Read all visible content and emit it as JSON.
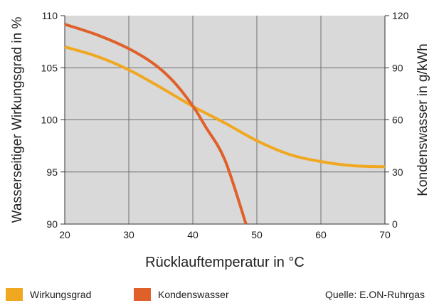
{
  "chart_data": {
    "type": "line",
    "xlabel": "Rücklauftemperatur in °C",
    "ylabel_left": "Wasserseitiger Wirkungsgrad in %",
    "ylabel_right": "Kondenswasser in g/kWh",
    "xlim": [
      20,
      70
    ],
    "ylim_left": [
      90,
      110
    ],
    "ylim_right": [
      0,
      120
    ],
    "x_ticks": [
      "20",
      "30",
      "40",
      "50",
      "60",
      "70"
    ],
    "y_ticks_left": [
      "90",
      "95",
      "100",
      "105",
      "110"
    ],
    "y_ticks_right": [
      "0",
      "30",
      "60",
      "90",
      "120"
    ],
    "grid": true,
    "series": [
      {
        "name": "Wirkungsgrad",
        "axis": "left",
        "color": "#f0a820",
        "x": [
          20,
          25,
          30,
          35,
          40,
          45,
          50,
          55,
          60,
          65,
          70
        ],
        "y": [
          107.0,
          106.1,
          104.8,
          103.1,
          101.3,
          99.7,
          98.0,
          96.7,
          96.0,
          95.6,
          95.5
        ]
      },
      {
        "name": "Kondenswasser",
        "axis": "right",
        "color": "#e0602a",
        "x": [
          20,
          25,
          30,
          34,
          37,
          40,
          42,
          45,
          48.3
        ],
        "y": [
          115,
          109,
          101,
          92,
          82,
          68,
          56,
          37,
          0
        ]
      }
    ]
  },
  "legend": {
    "items": [
      {
        "label": "Wirkungsgrad",
        "color": "#f0a820"
      },
      {
        "label": "Kondenswasser",
        "color": "#e0602a"
      }
    ],
    "source": "Quelle: E.ON-Ruhrgas"
  }
}
